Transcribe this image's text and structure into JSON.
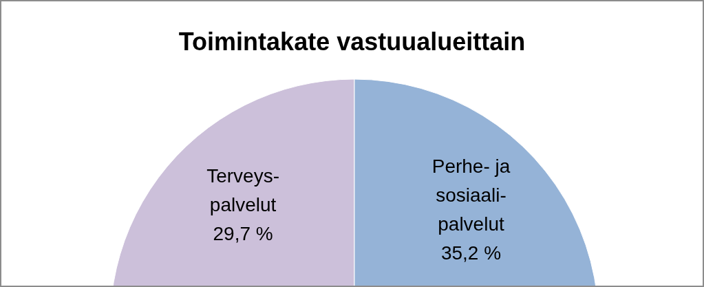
{
  "chart_data": {
    "type": "pie",
    "title": "Toimintakate vastuualueittain",
    "categories": [
      "Terveys-palvelut",
      "Perhe- ja sosiaali-palvelut"
    ],
    "values": [
      29.7,
      35.2
    ],
    "colors": [
      "#ccc0da",
      "#95b3d7"
    ],
    "value_labels": [
      "29,7 %",
      "35,2 %"
    ],
    "legend": false
  }
}
